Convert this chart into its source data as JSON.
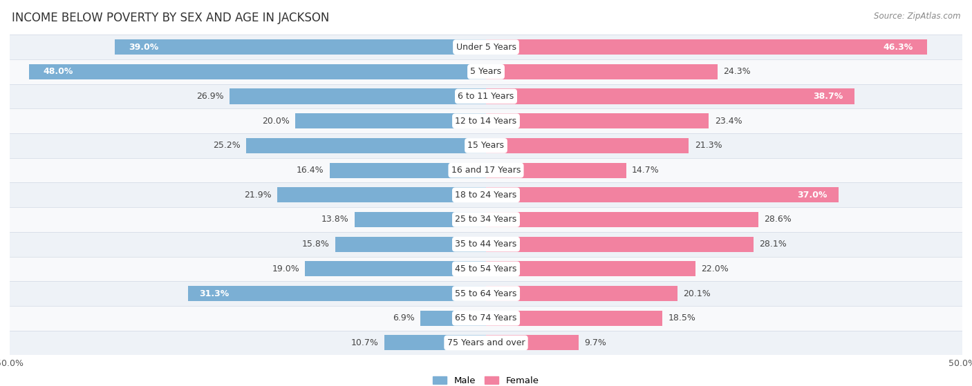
{
  "title": "INCOME BELOW POVERTY BY SEX AND AGE IN JACKSON",
  "source": "Source: ZipAtlas.com",
  "categories": [
    "Under 5 Years",
    "5 Years",
    "6 to 11 Years",
    "12 to 14 Years",
    "15 Years",
    "16 and 17 Years",
    "18 to 24 Years",
    "25 to 34 Years",
    "35 to 44 Years",
    "45 to 54 Years",
    "55 to 64 Years",
    "65 to 74 Years",
    "75 Years and over"
  ],
  "male_values": [
    39.0,
    48.0,
    26.9,
    20.0,
    25.2,
    16.4,
    21.9,
    13.8,
    15.8,
    19.0,
    31.3,
    6.9,
    10.7
  ],
  "female_values": [
    46.3,
    24.3,
    38.7,
    23.4,
    21.3,
    14.7,
    37.0,
    28.6,
    28.1,
    22.0,
    20.1,
    18.5,
    9.7
  ],
  "male_color": "#7bafd4",
  "female_color": "#f282a0",
  "male_label": "Male",
  "female_label": "Female",
  "axis_limit": 50.0,
  "row_bg_light": "#eef2f7",
  "row_bg_white": "#f8f9fb",
  "bar_height": 0.62,
  "title_fontsize": 12,
  "label_fontsize": 9,
  "tick_fontsize": 9,
  "source_fontsize": 8.5
}
